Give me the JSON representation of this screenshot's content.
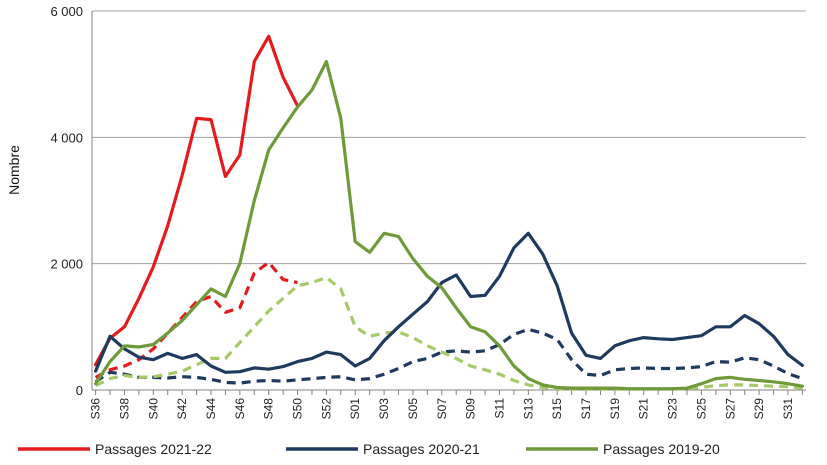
{
  "chart_data": {
    "type": "line",
    "title": "",
    "xlabel": "",
    "ylabel": "Nombre",
    "ylim": [
      0,
      6000
    ],
    "yticks": [
      0,
      2000,
      4000,
      6000
    ],
    "ytick_labels": [
      "0",
      "2 000",
      "4 000",
      "6 000"
    ],
    "grid": "horizontal",
    "legend_position": "bottom",
    "categories": [
      "S36",
      "S37",
      "S38",
      "S39",
      "S40",
      "S41",
      "S42",
      "S43",
      "S44",
      "S45",
      "S46",
      "S47",
      "S48",
      "S49",
      "S50",
      "S51",
      "S52",
      "S53",
      "S01",
      "S02",
      "S03",
      "S04",
      "S05",
      "S06",
      "S07",
      "S08",
      "S09",
      "S10",
      "S11",
      "S12",
      "S13",
      "S14",
      "S15",
      "S16",
      "S17",
      "S18",
      "S19",
      "S20",
      "S21",
      "S22",
      "S23",
      "S24",
      "S25",
      "S26",
      "S27",
      "S28",
      "S29",
      "S30",
      "S31",
      "S32"
    ],
    "x_tick_labels": [
      "S36",
      "S38",
      "S40",
      "S42",
      "S44",
      "S46",
      "S48",
      "S50",
      "S52",
      "S01",
      "S03",
      "S05",
      "S07",
      "S09",
      "S11",
      "S13",
      "S15",
      "S17",
      "S19",
      "S21",
      "S23",
      "S25",
      "S27",
      "S29",
      "S31"
    ],
    "series": [
      {
        "name": "Passages 2021-22",
        "color": "#e41a1c",
        "dash": false,
        "in_legend": true,
        "values": [
          400,
          820,
          1000,
          1450,
          1950,
          2600,
          3400,
          4300,
          4280,
          3380,
          3720,
          5200,
          5600,
          4950,
          4500,
          null,
          null,
          null,
          null,
          null,
          null,
          null,
          null,
          null,
          null,
          null,
          null,
          null,
          null,
          null,
          null,
          null,
          null,
          null,
          null,
          null,
          null,
          null,
          null,
          null,
          null,
          null,
          null,
          null,
          null,
          null,
          null,
          null,
          null,
          null
        ]
      },
      {
        "name": "2021-22 dashed",
        "color": "#e41a1c",
        "dash": true,
        "in_legend": false,
        "values": [
          200,
          320,
          380,
          480,
          650,
          900,
          1150,
          1400,
          1480,
          1230,
          1300,
          1850,
          2020,
          1750,
          1700,
          null,
          null,
          null,
          null,
          null,
          null,
          null,
          null,
          null,
          null,
          null,
          null,
          null,
          null,
          null,
          null,
          null,
          null,
          null,
          null,
          null,
          null,
          null,
          null,
          null,
          null,
          null,
          null,
          null,
          null,
          null,
          null,
          null,
          null,
          null
        ]
      },
      {
        "name": "Passages 2020-21",
        "color": "#1f3a5f",
        "dash": false,
        "in_legend": true,
        "values": [
          300,
          850,
          650,
          520,
          480,
          580,
          500,
          560,
          380,
          280,
          290,
          350,
          330,
          370,
          450,
          500,
          600,
          560,
          380,
          500,
          780,
          1000,
          1200,
          1400,
          1700,
          1820,
          1480,
          1500,
          1800,
          2250,
          2480,
          2150,
          1650,
          900,
          550,
          500,
          700,
          780,
          830,
          810,
          800,
          830,
          860,
          1000,
          1000,
          1180,
          1050,
          850,
          560,
          390
        ]
      },
      {
        "name": "2020-21 dashed",
        "color": "#1f3a5f",
        "dash": true,
        "in_legend": false,
        "values": [
          130,
          280,
          250,
          200,
          200,
          190,
          210,
          200,
          170,
          120,
          110,
          140,
          150,
          140,
          160,
          180,
          200,
          210,
          160,
          180,
          250,
          340,
          450,
          500,
          600,
          620,
          600,
          620,
          720,
          880,
          960,
          900,
          800,
          480,
          250,
          230,
          320,
          340,
          350,
          340,
          340,
          350,
          370,
          450,
          440,
          510,
          480,
          380,
          260,
          180
        ]
      },
      {
        "name": "Passages 2019-20",
        "color": "#6f9a3a",
        "dash": false,
        "in_legend": true,
        "values": [
          100,
          450,
          700,
          680,
          720,
          900,
          1100,
          1350,
          1600,
          1480,
          2000,
          3000,
          3800,
          4150,
          4480,
          4750,
          5200,
          4300,
          2350,
          2180,
          2480,
          2430,
          2080,
          1800,
          1620,
          1300,
          1000,
          920,
          700,
          380,
          180,
          80,
          40,
          30,
          30,
          30,
          30,
          20,
          20,
          20,
          20,
          30,
          100,
          180,
          200,
          170,
          150,
          130,
          100,
          60
        ]
      },
      {
        "name": "2019-20 dashed",
        "color": "#a6c96a",
        "dash": true,
        "in_legend": false,
        "values": [
          70,
          180,
          230,
          200,
          210,
          250,
          300,
          400,
          500,
          500,
          750,
          1000,
          1250,
          1450,
          1650,
          1700,
          1780,
          1600,
          1000,
          850,
          900,
          920,
          830,
          700,
          600,
          500,
          380,
          320,
          250,
          150,
          80,
          40,
          20,
          15,
          15,
          15,
          15,
          15,
          15,
          15,
          15,
          20,
          40,
          70,
          80,
          80,
          70,
          60,
          50,
          30
        ]
      }
    ]
  }
}
